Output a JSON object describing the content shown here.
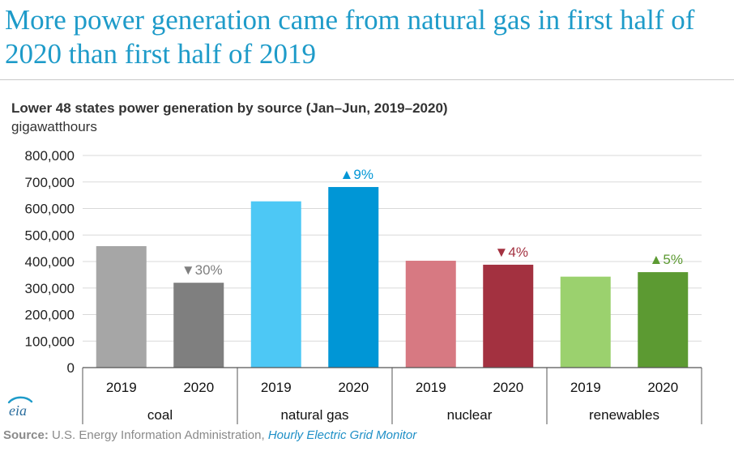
{
  "headline": "More power generation came from natural gas in first half of 2020 than first half of 2019",
  "chart_data": {
    "type": "bar",
    "title": "Lower 48 states power generation by source (Jan–Jun, 2019–2020)",
    "units": "gigawatthours",
    "ylim": [
      0,
      800000
    ],
    "y_ticks": [
      "800,000",
      "700,000",
      "600,000",
      "500,000",
      "400,000",
      "300,000",
      "200,000",
      "100,000",
      "0"
    ],
    "grid": true,
    "groups": [
      {
        "name": "coal",
        "bars": [
          {
            "year": "2019",
            "value": 458000,
            "color": "#a6a6a6"
          },
          {
            "year": "2020",
            "value": 320000,
            "color": "#7f7f7f"
          }
        ],
        "change": {
          "arrow": "▼",
          "text": "30%",
          "color": "#7f7f7f"
        }
      },
      {
        "name": "natural gas",
        "bars": [
          {
            "year": "2019",
            "value": 627000,
            "color": "#4dc8f5"
          },
          {
            "year": "2020",
            "value": 681000,
            "color": "#0096d6"
          }
        ],
        "change": {
          "arrow": "▲",
          "text": "9%",
          "color": "#0096d6"
        }
      },
      {
        "name": "nuclear",
        "bars": [
          {
            "year": "2019",
            "value": 403000,
            "color": "#d77982"
          },
          {
            "year": "2020",
            "value": 388000,
            "color": "#a33140"
          }
        ],
        "change": {
          "arrow": "▼",
          "text": "4%",
          "color": "#a33140"
        }
      },
      {
        "name": "renewables",
        "bars": [
          {
            "year": "2019",
            "value": 343000,
            "color": "#9bd16e"
          },
          {
            "year": "2020",
            "value": 360000,
            "color": "#5c9a32"
          }
        ],
        "change": {
          "arrow": "▲",
          "text": "5%",
          "color": "#5c9a32"
        }
      }
    ]
  },
  "logo_text": "eia",
  "source": {
    "label": "Source:",
    "text": " U.S. Energy Information Administration, ",
    "link": "Hourly Electric Grid Monitor"
  }
}
